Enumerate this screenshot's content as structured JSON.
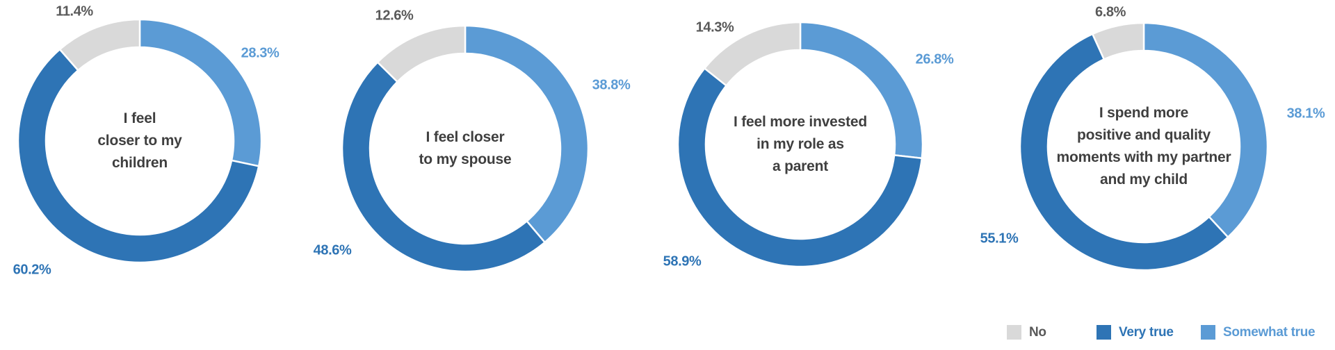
{
  "colors": {
    "no": "#d9d9d9",
    "very_true": "#2e74b5",
    "somewhat_true": "#5b9bd5",
    "no_label_text": "#595959",
    "center_text": "#3f3f3f",
    "background": "#ffffff"
  },
  "legend": {
    "items": [
      {
        "key": "no",
        "label": "No"
      },
      {
        "key": "very_true",
        "label": "Very true"
      },
      {
        "key": "somewhat_true",
        "label": "Somewhat true"
      }
    ]
  },
  "chart_data": {
    "type": "pie",
    "subtype": "donut",
    "unit": "percent",
    "start_angle_deg": 0,
    "direction": "clockwise",
    "legend_position": "bottom-right",
    "series_order": [
      "Somewhat true",
      "Very true",
      "No"
    ],
    "charts": [
      {
        "center_text": "I feel closer to my children",
        "center_text_lines": [
          "I feel",
          "closer to my",
          "children"
        ],
        "slices": [
          {
            "key": "somewhat_true",
            "name": "Somewhat true",
            "value": 28.3,
            "label": "28.3%"
          },
          {
            "key": "very_true",
            "name": "Very true",
            "value": 60.2,
            "label": "60.2%"
          },
          {
            "key": "no",
            "name": "No",
            "value": 11.4,
            "label": "11.4%"
          }
        ]
      },
      {
        "center_text": "I feel closer to my spouse",
        "center_text_lines": [
          "I feel closer",
          "to my spouse"
        ],
        "slices": [
          {
            "key": "somewhat_true",
            "name": "Somewhat true",
            "value": 38.8,
            "label": "38.8%"
          },
          {
            "key": "very_true",
            "name": "Very true",
            "value": 48.6,
            "label": "48.6%"
          },
          {
            "key": "no",
            "name": "No",
            "value": 12.6,
            "label": "12.6%"
          }
        ]
      },
      {
        "center_text": "I feel more invested in my role as a parent",
        "center_text_lines": [
          "I feel more invested",
          "in my role as",
          "a parent"
        ],
        "slices": [
          {
            "key": "somewhat_true",
            "name": "Somewhat true",
            "value": 26.8,
            "label": "26.8%"
          },
          {
            "key": "very_true",
            "name": "Very true",
            "value": 58.9,
            "label": "58.9%"
          },
          {
            "key": "no",
            "name": "No",
            "value": 14.3,
            "label": "14.3%"
          }
        ]
      },
      {
        "center_text": "I spend more positive and quality moments with my partner and my child",
        "center_text_lines": [
          "I spend more",
          "positive and quality",
          "moments with my partner",
          "and my child"
        ],
        "slices": [
          {
            "key": "somewhat_true",
            "name": "Somewhat true",
            "value": 38.1,
            "label": "38.1%"
          },
          {
            "key": "very_true",
            "name": "Very true",
            "value": 55.1,
            "label": "55.1%"
          },
          {
            "key": "no",
            "name": "No",
            "value": 6.8,
            "label": "6.8%"
          }
        ]
      }
    ]
  }
}
